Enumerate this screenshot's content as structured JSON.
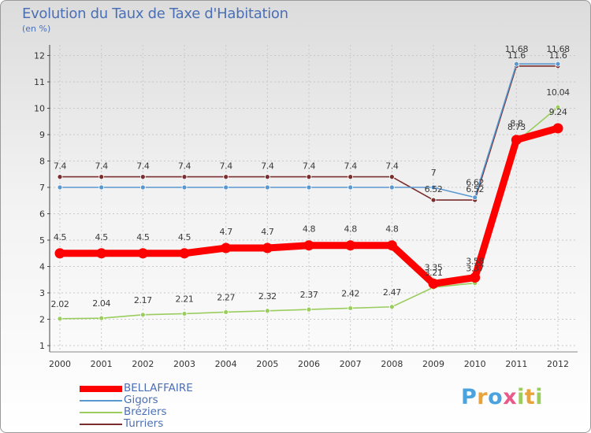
{
  "chart_data": {
    "type": "line",
    "title": "Evolution du Taux de Taxe d'Habitation",
    "subtitle": "(en %)",
    "xlabel": "",
    "ylabel": "",
    "x": [
      "2000",
      "2001",
      "2002",
      "2003",
      "2004",
      "2005",
      "2006",
      "2007",
      "2008",
      "2009",
      "2010",
      "2011",
      "2012"
    ],
    "ylim": [
      1,
      12
    ],
    "yticks": [
      1,
      2,
      3,
      4,
      5,
      6,
      7,
      8,
      9,
      10,
      11,
      12
    ],
    "grid": true,
    "legend_position": "bottom-left",
    "series": [
      {
        "name": "BELLAFFAIRE",
        "color": "#ff0000",
        "values": [
          4.5,
          4.5,
          4.5,
          4.5,
          4.7,
          4.7,
          4.8,
          4.8,
          4.8,
          3.35,
          3.58,
          8.8,
          9.24
        ],
        "labels": [
          "4.5",
          "4.5",
          "4.5",
          "4.5",
          "4.7",
          "4.7",
          "4.8",
          "4.8",
          "4.8",
          "3.35",
          "3.58",
          "8.8",
          "9.24"
        ]
      },
      {
        "name": "Gigors",
        "color": "#5a97cf",
        "values": [
          7,
          7,
          7,
          7,
          7,
          7,
          7,
          7,
          7,
          7,
          6.62,
          11.68,
          11.68
        ],
        "labels": [
          "",
          "",
          "",
          "",
          "",
          "",
          "",
          "",
          "",
          "7",
          "6.62",
          "11.68",
          "11.68"
        ]
      },
      {
        "name": "Bréziers",
        "color": "#9acd5e",
        "values": [
          2.02,
          2.04,
          2.17,
          2.21,
          2.27,
          2.32,
          2.37,
          2.42,
          2.47,
          3.21,
          3.37,
          8.73,
          10.04
        ],
        "labels": [
          "2.02",
          "2.04",
          "2.17",
          "2.21",
          "2.27",
          "2.32",
          "2.37",
          "2.42",
          "2.47",
          "3.21",
          "3.37",
          "8.73",
          "10.04"
        ]
      },
      {
        "name": "Turriers",
        "color": "#7a2e2e",
        "values": [
          7.4,
          7.4,
          7.4,
          7.4,
          7.4,
          7.4,
          7.4,
          7.4,
          7.4,
          6.52,
          6.52,
          11.6,
          11.6
        ],
        "labels": [
          "7.4",
          "7.4",
          "7.4",
          "7.4",
          "7.4",
          "7.4",
          "7.4",
          "7.4",
          "7.4",
          "6.52",
          "6.52",
          "11.6",
          "11.6"
        ]
      }
    ]
  },
  "brand": {
    "letters": [
      "P",
      "r",
      "o",
      "x",
      "i",
      "t",
      "i"
    ],
    "colors": [
      "#4aa3df",
      "#e8a33a",
      "#4aa3df",
      "#e85a8a",
      "#9acd5e",
      "#e8a33a",
      "#9acd5e"
    ]
  }
}
